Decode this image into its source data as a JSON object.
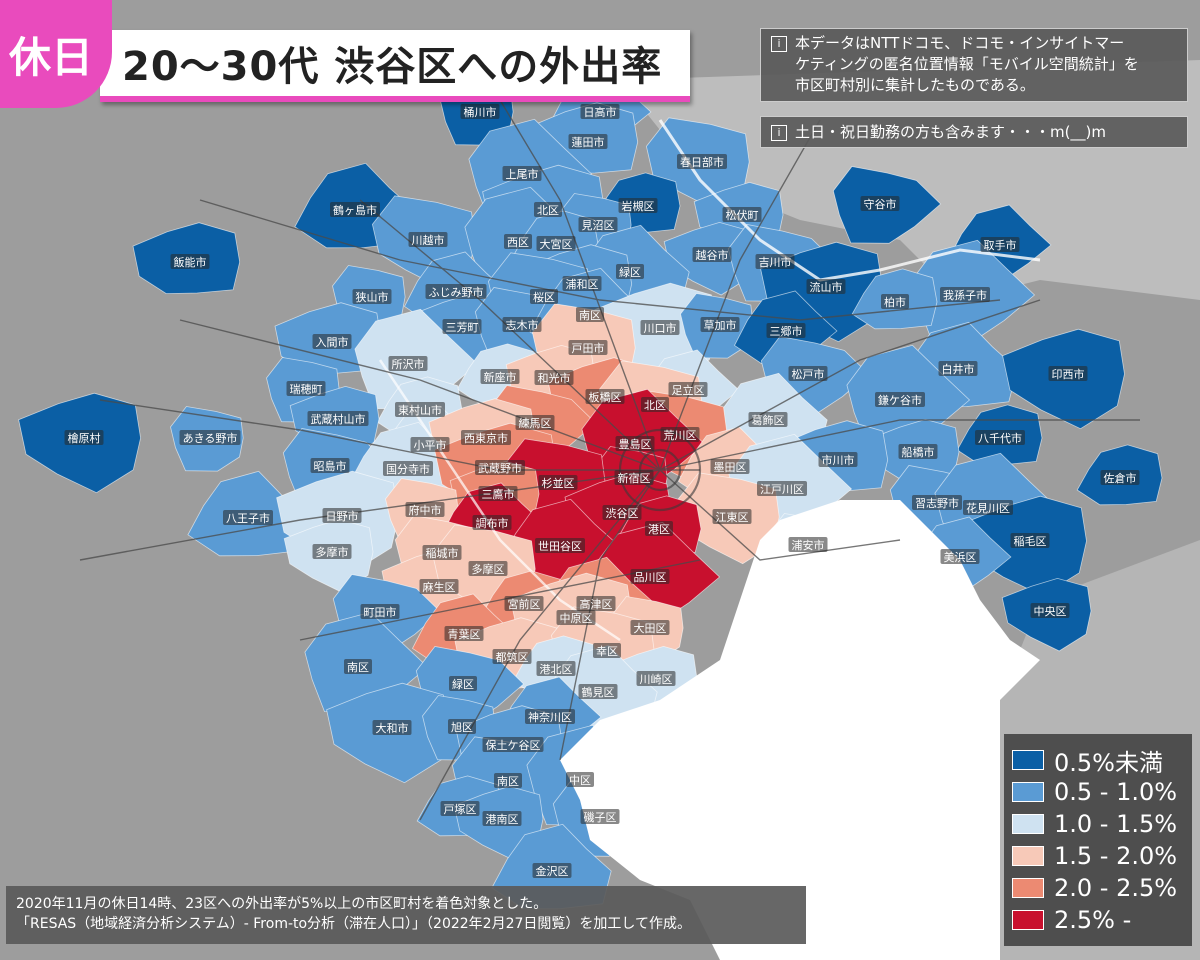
{
  "header": {
    "holiday_badge": "休日",
    "title": "20〜30代 渋谷区への外出率"
  },
  "notes": {
    "note1_icon": "i",
    "note1_line1": "本データはNTTドコモ、ドコモ・インサイトマー",
    "note1_line2": "ケティングの匿名位置情報「モバイル空間統計」を",
    "note1_line3": "市区町村別に集計したものである。",
    "note2_icon": "i",
    "note2_text": "土日・祝日勤務の方も含みます・・・m(__)m"
  },
  "footer": {
    "line1": "2020年11月の休日14時、23区への外出率が5%以上の市区町村を着色対象とした。",
    "line2": "「RESAS（地域経済分析システム）- From-to分析（滞在人口）」（2022年2月27日閲覧）を加工して作成。"
  },
  "legend": [
    {
      "label": "0.5%未満",
      "color": "#0b5fa5"
    },
    {
      "label": "0.5 - 1.0%",
      "color": "#5a9bd4"
    },
    {
      "label": "1.0 - 1.5%",
      "color": "#cfe2f1"
    },
    {
      "label": "1.5 - 2.0%",
      "color": "#f7c9b8"
    },
    {
      "label": "2.0 - 2.5%",
      "color": "#ec8a72"
    },
    {
      "label": "2.5% -",
      "color": "#c8102e"
    }
  ],
  "colors": {
    "background": "#9d9d9d",
    "sea": "#ffffff",
    "accent_pink": "#e94bbd"
  },
  "places": [
    {
      "name": "桶川市",
      "cls": 0
    },
    {
      "name": "日高市",
      "cls": 1
    },
    {
      "name": "蓮田市",
      "cls": 1
    },
    {
      "name": "春日部市",
      "cls": 1
    },
    {
      "name": "上尾市",
      "cls": 1
    },
    {
      "name": "岩槻区",
      "cls": 0
    },
    {
      "name": "松伏町",
      "cls": 1
    },
    {
      "name": "守谷市",
      "cls": 0
    },
    {
      "name": "鶴ヶ島市",
      "cls": 0
    },
    {
      "name": "北区",
      "cls": 1
    },
    {
      "name": "見沼区",
      "cls": 1
    },
    {
      "name": "取手市",
      "cls": 0
    },
    {
      "name": "飯能市",
      "cls": 0
    },
    {
      "name": "川越市",
      "cls": 1
    },
    {
      "name": "西区",
      "cls": 1
    },
    {
      "name": "大宮区",
      "cls": 1
    },
    {
      "name": "越谷市",
      "cls": 1
    },
    {
      "name": "吉川市",
      "cls": 1
    },
    {
      "name": "緑区",
      "cls": 1
    },
    {
      "name": "流山市",
      "cls": 0
    },
    {
      "name": "狭山市",
      "cls": 1
    },
    {
      "name": "ふじみ野市",
      "cls": 1
    },
    {
      "name": "浦和区",
      "cls": 1
    },
    {
      "name": "桜区",
      "cls": 1
    },
    {
      "name": "我孫子市",
      "cls": 1
    },
    {
      "name": "柏市",
      "cls": 1
    },
    {
      "name": "三芳町",
      "cls": 1
    },
    {
      "name": "志木市",
      "cls": 1
    },
    {
      "name": "南区",
      "cls": 1
    },
    {
      "name": "川口市",
      "cls": 2
    },
    {
      "name": "草加市",
      "cls": 1
    },
    {
      "name": "三郷市",
      "cls": 0
    },
    {
      "name": "入間市",
      "cls": 1
    },
    {
      "name": "戸田市",
      "cls": 3
    },
    {
      "name": "所沢市",
      "cls": 2
    },
    {
      "name": "新座市",
      "cls": 2
    },
    {
      "name": "和光市",
      "cls": 3
    },
    {
      "name": "松戸市",
      "cls": 1
    },
    {
      "name": "白井市",
      "cls": 1
    },
    {
      "name": "印西市",
      "cls": 0
    },
    {
      "name": "瑞穂町",
      "cls": 1
    },
    {
      "name": "足立区",
      "cls": 2
    },
    {
      "name": "板橋区",
      "cls": 4
    },
    {
      "name": "北区",
      "cls": 3
    },
    {
      "name": "鎌ケ谷市",
      "cls": 1
    },
    {
      "name": "東村山市",
      "cls": 2
    },
    {
      "name": "武蔵村山市",
      "cls": 1
    },
    {
      "name": "練馬区",
      "cls": 4
    },
    {
      "name": "葛飾区",
      "cls": 2
    },
    {
      "name": "檜原村",
      "cls": 0
    },
    {
      "name": "あきる野市",
      "cls": 1
    },
    {
      "name": "小平市",
      "cls": 2
    },
    {
      "name": "西東京市",
      "cls": 3
    },
    {
      "name": "荒川区",
      "cls": 4
    },
    {
      "name": "豊島区",
      "cls": 5
    },
    {
      "name": "八千代市",
      "cls": 0
    },
    {
      "name": "船橋市",
      "cls": 1
    },
    {
      "name": "昭島市",
      "cls": 1
    },
    {
      "name": "国分寺市",
      "cls": 2
    },
    {
      "name": "武蔵野市",
      "cls": 4
    },
    {
      "name": "新宿区",
      "cls": 5
    },
    {
      "name": "墨田区",
      "cls": 3
    },
    {
      "name": "市川市",
      "cls": 1
    },
    {
      "name": "杉並区",
      "cls": 5
    },
    {
      "name": "江戸川区",
      "cls": 2
    },
    {
      "name": "佐倉市",
      "cls": 0
    },
    {
      "name": "三鷹市",
      "cls": 4
    },
    {
      "name": "習志野市",
      "cls": 1
    },
    {
      "name": "八王子市",
      "cls": 1
    },
    {
      "name": "日野市",
      "cls": 2
    },
    {
      "name": "府中市",
      "cls": 3
    },
    {
      "name": "調布市",
      "cls": 5
    },
    {
      "name": "渋谷区",
      "cls": 5
    },
    {
      "name": "江東区",
      "cls": 3
    },
    {
      "name": "花見川区",
      "cls": 1
    },
    {
      "name": "港区",
      "cls": 5
    },
    {
      "name": "多摩市",
      "cls": 2
    },
    {
      "name": "稲城市",
      "cls": 3
    },
    {
      "name": "世田谷区",
      "cls": 5
    },
    {
      "name": "稲毛区",
      "cls": 0
    },
    {
      "name": "浦安市",
      "cls": 2
    },
    {
      "name": "美浜区",
      "cls": 1
    },
    {
      "name": "麻生区",
      "cls": 3
    },
    {
      "name": "多摩区",
      "cls": 3
    },
    {
      "name": "品川区",
      "cls": 5
    },
    {
      "name": "宮前区",
      "cls": 4
    },
    {
      "name": "中央区",
      "cls": 0
    },
    {
      "name": "町田市",
      "cls": 1
    },
    {
      "name": "高津区",
      "cls": 4
    },
    {
      "name": "中原区",
      "cls": 3
    },
    {
      "name": "大田区",
      "cls": 3
    },
    {
      "name": "青葉区",
      "cls": 4
    },
    {
      "name": "都筑区",
      "cls": 3
    },
    {
      "name": "幸区",
      "cls": 3
    },
    {
      "name": "南区",
      "cls": 1
    },
    {
      "name": "港北区",
      "cls": 2
    },
    {
      "name": "川崎区",
      "cls": 2
    },
    {
      "name": "緑区",
      "cls": 1
    },
    {
      "name": "鶴見区",
      "cls": 2
    },
    {
      "name": "大和市",
      "cls": 1
    },
    {
      "name": "旭区",
      "cls": 1
    },
    {
      "name": "神奈川区",
      "cls": 1
    },
    {
      "name": "保土ケ谷区",
      "cls": 1
    },
    {
      "name": "南区",
      "cls": 1
    },
    {
      "name": "中区",
      "cls": 1
    },
    {
      "name": "戸塚区",
      "cls": 1
    },
    {
      "name": "港南区",
      "cls": 1
    },
    {
      "name": "磯子区",
      "cls": 1
    },
    {
      "name": "金沢区",
      "cls": 1
    }
  ]
}
